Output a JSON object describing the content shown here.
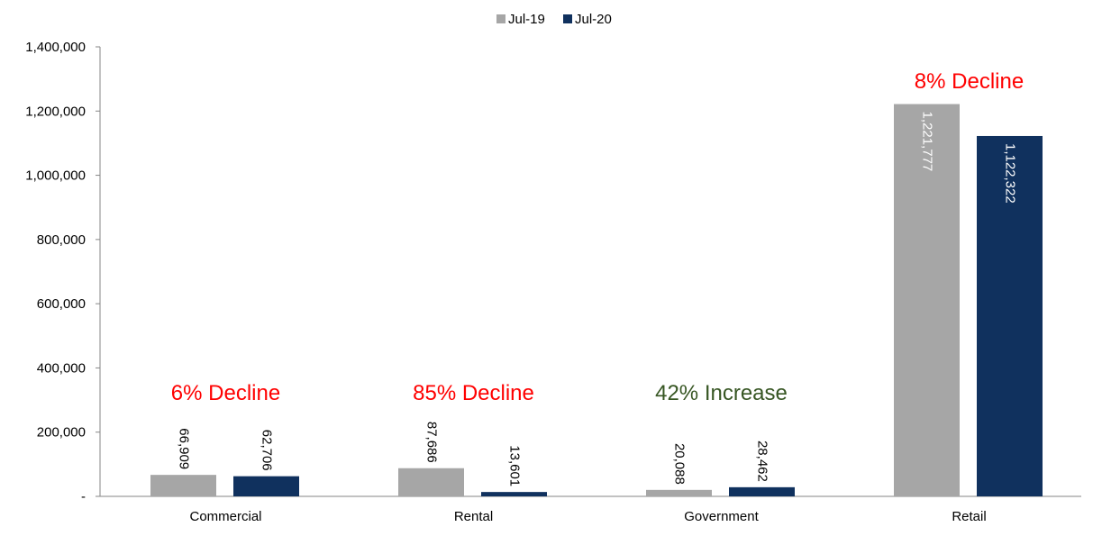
{
  "chart_data": {
    "type": "bar",
    "categories": [
      "Commercial",
      "Rental",
      "Government",
      "Retail"
    ],
    "series": [
      {
        "name": "Jul-19",
        "color": "#A6A6A6",
        "values": [
          66909,
          87686,
          20088,
          1221777
        ],
        "labels": [
          "66,909",
          "87,686",
          "20,088",
          "1,221,777"
        ]
      },
      {
        "name": "Jul-20",
        "color": "#10315E",
        "values": [
          62706,
          13601,
          28462,
          1122322
        ],
        "labels": [
          "62,706",
          "13,601",
          "28,462",
          "1,122,322"
        ]
      }
    ],
    "ylim": [
      0,
      1400000
    ],
    "yticks": [
      0,
      200000,
      400000,
      600000,
      800000,
      1000000,
      1200000,
      1400000
    ],
    "ytick_labels": [
      "-",
      "200,000",
      "400,000",
      "600,000",
      "800,000",
      "1,000,000",
      "1,200,000",
      "1,400,000"
    ],
    "annotations": [
      {
        "category": "Commercial",
        "text": "6% Decline",
        "color": "#FF0000"
      },
      {
        "category": "Rental",
        "text": "85% Decline",
        "color": "#FF0000"
      },
      {
        "category": "Government",
        "text": "42% Increase",
        "color": "#375623"
      },
      {
        "category": "Retail",
        "text": "8% Decline",
        "color": "#FF0000"
      }
    ],
    "legend_position": "top-center",
    "grid": false,
    "title": "",
    "xlabel": "",
    "ylabel": ""
  }
}
